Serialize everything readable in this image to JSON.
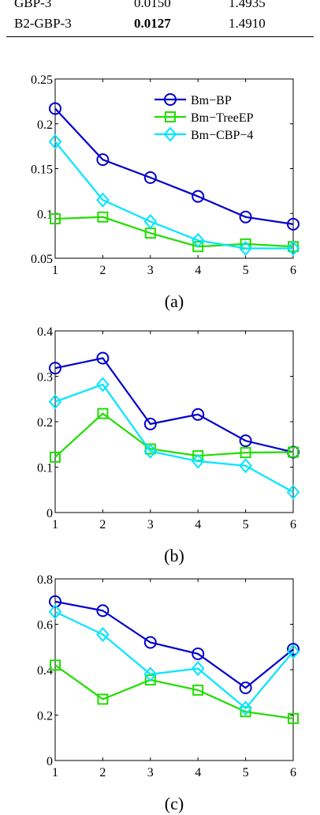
{
  "table": {
    "rows": [
      {
        "name": "GBP-3",
        "v1": "0.0150",
        "v2": "1.4935",
        "v1_bold": false
      },
      {
        "name": "B2-GBP-3",
        "v1": "0.0127",
        "v2": "1.4910",
        "v1_bold": true
      }
    ]
  },
  "chart_data": [
    {
      "type": "line",
      "caption": "(a)",
      "x": [
        1,
        2,
        3,
        4,
        5,
        6
      ],
      "xlim": [
        1,
        6
      ],
      "ylim": [
        0.05,
        0.25
      ],
      "xticks": [
        1,
        2,
        3,
        4,
        5,
        6
      ],
      "yticks": [
        0.05,
        0.1,
        0.15,
        0.2,
        0.25
      ],
      "ytick_labels": [
        "0.05",
        "0.1",
        "0.15",
        "0.2",
        "0.25"
      ],
      "legend": true,
      "legend_position": "top-right",
      "series": [
        {
          "name": "Bm−BP",
          "color": "#0000cc",
          "marker": "circle",
          "values": [
            0.217,
            0.16,
            0.14,
            0.119,
            0.096,
            0.088
          ]
        },
        {
          "name": "Bm−TreeEP",
          "color": "#22dd00",
          "marker": "square",
          "values": [
            0.094,
            0.096,
            0.078,
            0.063,
            0.066,
            0.063
          ]
        },
        {
          "name": "Bm−CBP−4",
          "color": "#00e5ff",
          "marker": "diamond",
          "values": [
            0.18,
            0.115,
            0.091,
            0.07,
            0.061,
            0.061
          ]
        }
      ]
    },
    {
      "type": "line",
      "caption": "(b)",
      "x": [
        1,
        2,
        3,
        4,
        5,
        6
      ],
      "xlim": [
        1,
        6
      ],
      "ylim": [
        0,
        0.4
      ],
      "xticks": [
        1,
        2,
        3,
        4,
        5,
        6
      ],
      "yticks": [
        0,
        0.1,
        0.2,
        0.3,
        0.4
      ],
      "ytick_labels": [
        "0",
        "0.1",
        "0.2",
        "0.3",
        "0.4"
      ],
      "legend": false,
      "series": [
        {
          "color": "#0000cc",
          "marker": "circle",
          "values": [
            0.318,
            0.34,
            0.195,
            0.216,
            0.158,
            0.133
          ]
        },
        {
          "color": "#22dd00",
          "marker": "square",
          "values": [
            0.122,
            0.218,
            0.14,
            0.125,
            0.132,
            0.133
          ]
        },
        {
          "color": "#00e5ff",
          "marker": "diamond",
          "values": [
            0.244,
            0.282,
            0.135,
            0.113,
            0.103,
            0.045
          ]
        }
      ]
    },
    {
      "type": "line",
      "caption": "(c)",
      "x": [
        1,
        2,
        3,
        4,
        5,
        6
      ],
      "xlim": [
        1,
        6
      ],
      "ylim": [
        0,
        0.8
      ],
      "xticks": [
        1,
        2,
        3,
        4,
        5,
        6
      ],
      "yticks": [
        0,
        0.2,
        0.4,
        0.6,
        0.8
      ],
      "ytick_labels": [
        "0",
        "0.2",
        "0.4",
        "0.6",
        "0.8"
      ],
      "legend": false,
      "series": [
        {
          "color": "#0000cc",
          "marker": "circle",
          "values": [
            0.7,
            0.66,
            0.52,
            0.47,
            0.32,
            0.49
          ]
        },
        {
          "color": "#22dd00",
          "marker": "square",
          "values": [
            0.42,
            0.27,
            0.355,
            0.31,
            0.215,
            0.185
          ]
        },
        {
          "color": "#00e5ff",
          "marker": "diamond",
          "values": [
            0.655,
            0.555,
            0.38,
            0.405,
            0.23,
            0.48
          ]
        }
      ]
    }
  ]
}
